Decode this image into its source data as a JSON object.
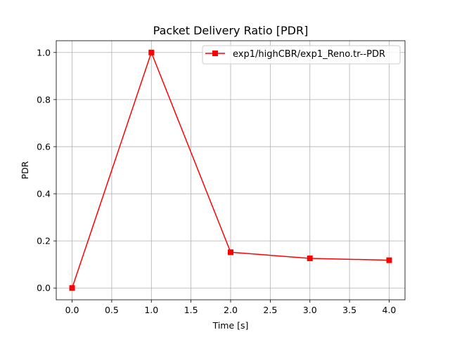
{
  "chart_data": {
    "type": "line",
    "title": "Packet Delivery Ratio [PDR]",
    "xlabel": "Time [s]",
    "ylabel": "PDR",
    "xlim": [
      -0.2,
      4.2
    ],
    "ylim": [
      -0.05,
      1.05
    ],
    "x_ticks": [
      0.0,
      0.5,
      1.0,
      1.5,
      2.0,
      2.5,
      3.0,
      3.5,
      4.0
    ],
    "x_tick_labels": [
      "0.0",
      "0.5",
      "1.0",
      "1.5",
      "2.0",
      "2.5",
      "3.0",
      "3.5",
      "4.0"
    ],
    "y_ticks": [
      0.0,
      0.2,
      0.4,
      0.6,
      0.8,
      1.0
    ],
    "y_tick_labels": [
      "0.0",
      "0.2",
      "0.4",
      "0.6",
      "0.8",
      "1.0"
    ],
    "grid": true,
    "legend_position": "top-right",
    "series": [
      {
        "name": "exp1/highCBR/exp1_Reno.tr--PDR",
        "color": "#ff0000",
        "marker": "square",
        "x": [
          0,
          1,
          2,
          3,
          4
        ],
        "values": [
          0.0,
          1.0,
          0.152,
          0.126,
          0.118
        ]
      }
    ]
  }
}
